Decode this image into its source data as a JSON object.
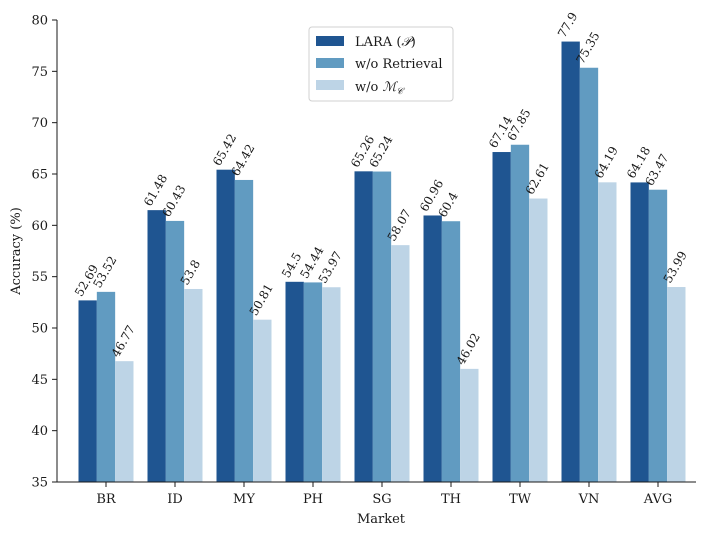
{
  "chart_data": {
    "type": "bar",
    "xlabel": "Market",
    "ylabel": "Accuracy (%)",
    "ylim": [
      35,
      80
    ],
    "yticks": [
      35,
      40,
      45,
      50,
      55,
      60,
      65,
      70,
      75,
      80
    ],
    "categories": [
      "BR",
      "ID",
      "MY",
      "PH",
      "SG",
      "TH",
      "TW",
      "VN",
      "AVG"
    ],
    "series": [
      {
        "name_prefix": "LARA (",
        "name_math": "𝒫",
        "name_suffix": ")",
        "color": "#1f5591",
        "values": [
          52.69,
          61.48,
          65.42,
          54.5,
          65.26,
          60.96,
          67.14,
          77.9,
          64.18
        ]
      },
      {
        "name": "w/o Retrieval",
        "color": "#619bc1",
        "values": [
          53.52,
          60.43,
          64.42,
          54.44,
          65.24,
          60.4,
          67.85,
          75.35,
          63.47
        ]
      },
      {
        "name_prefix": "w/o ",
        "name_math": "ℳ",
        "name_sub": "𝒞",
        "color": "#bdd4e6",
        "values": [
          46.77,
          53.8,
          50.81,
          53.97,
          58.07,
          46.02,
          62.61,
          64.19,
          53.99
        ]
      }
    ],
    "grid": false,
    "legend": "top-center"
  }
}
